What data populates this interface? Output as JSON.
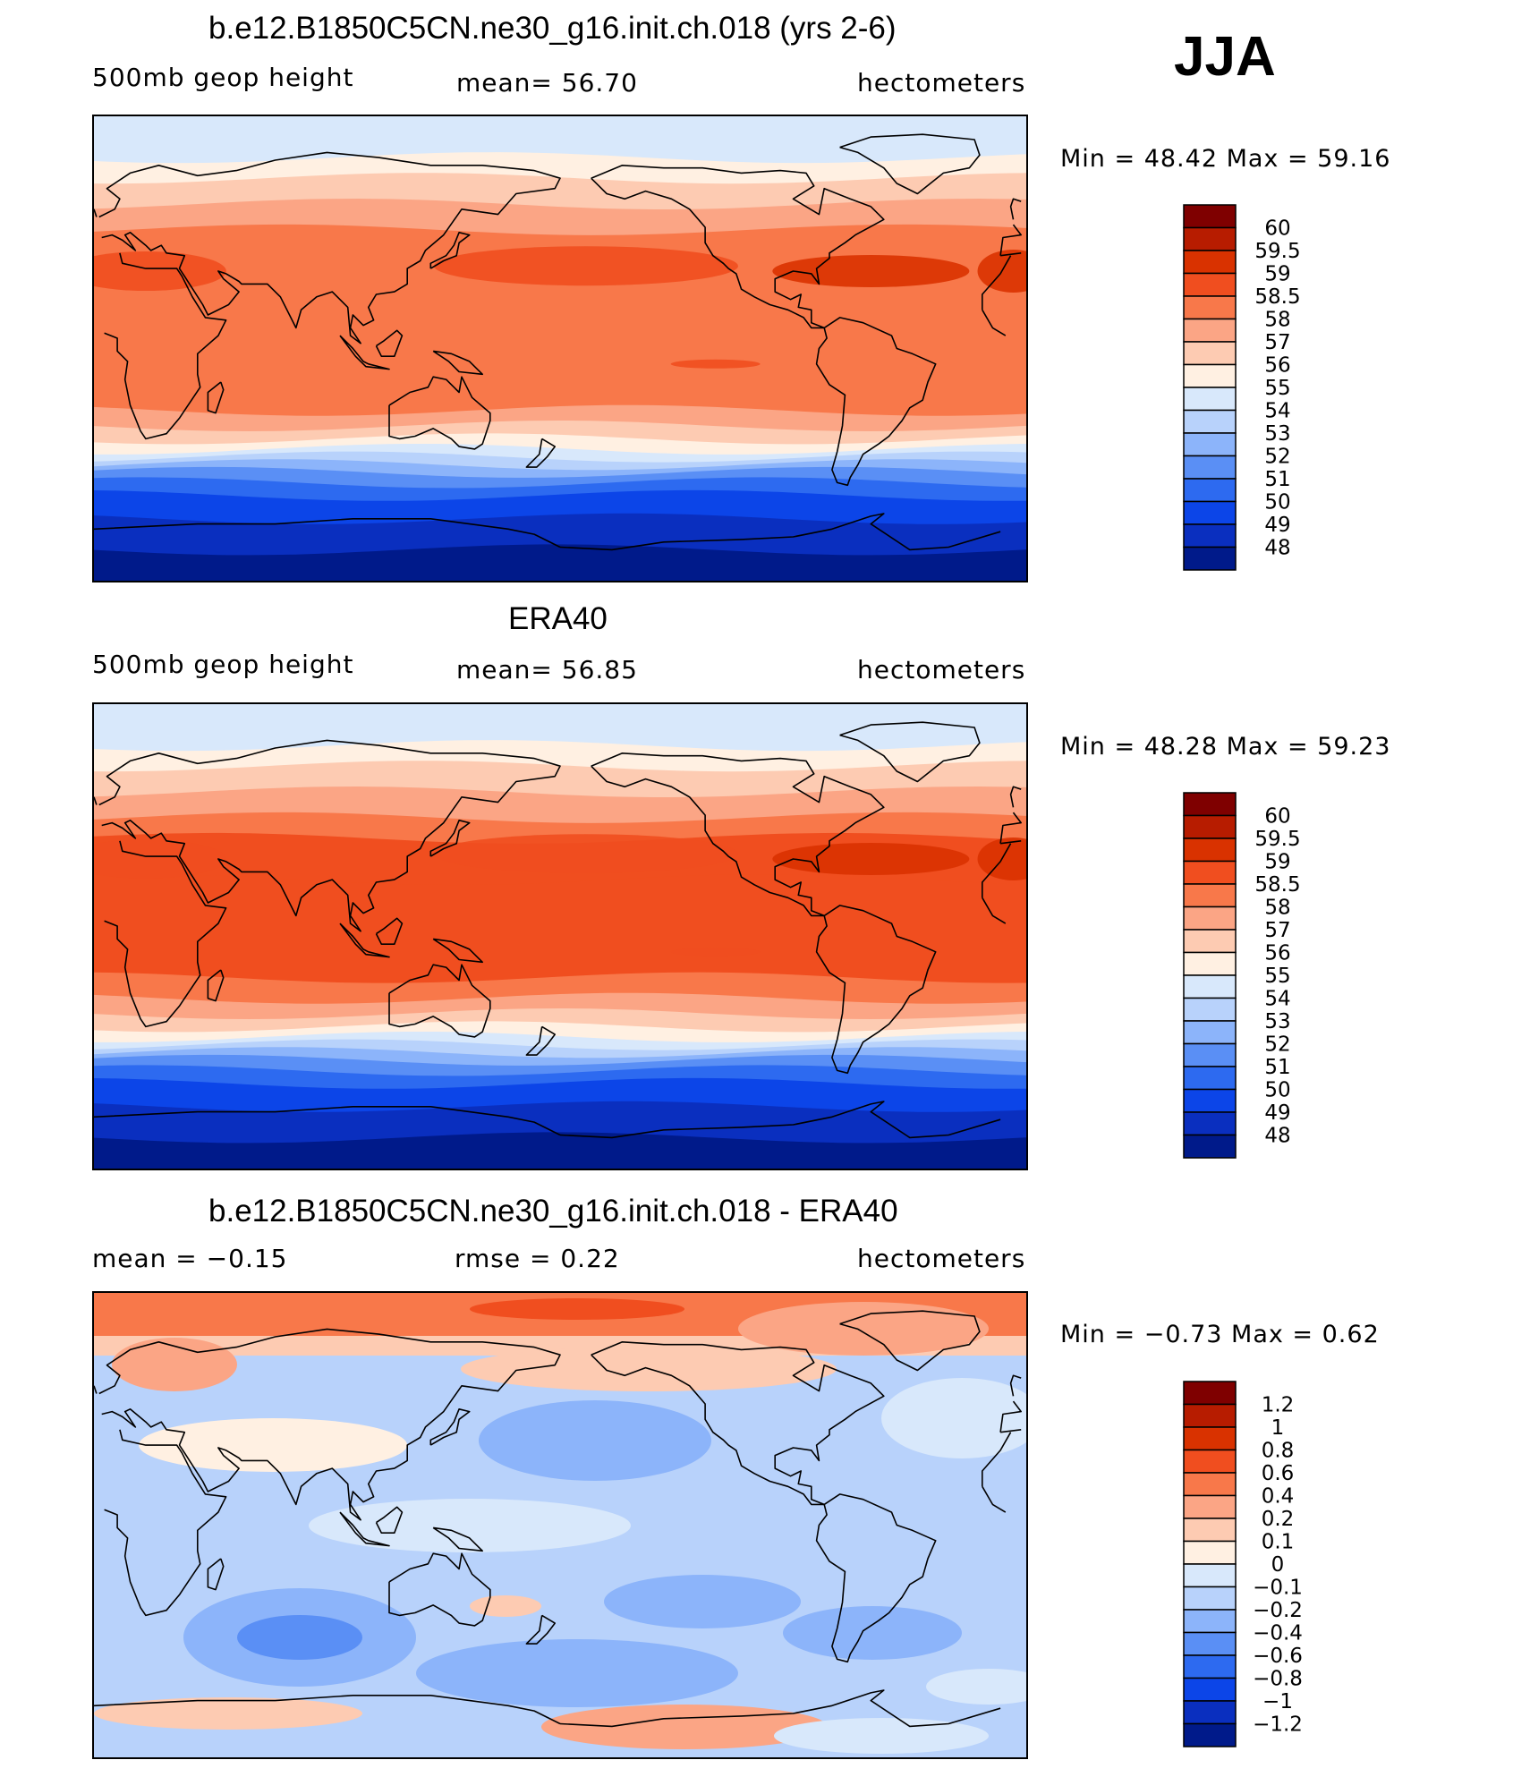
{
  "season_label": "JJA",
  "panels": [
    {
      "title": "b.e12.B1850C5CN.ne30_g16.init.ch.018 (yrs 2-6)",
      "left_label": "500mb  geop  height",
      "center_label": "mean=   56.70",
      "right_label": "hectometers",
      "minmax": "Min  =    48.42  Max  =    59.16",
      "kind": "field"
    },
    {
      "title": "ERA40",
      "left_label": "500mb  geop  height",
      "center_label": "mean=   56.85",
      "right_label": "hectometers",
      "minmax": "Min  =    48.28  Max  =    59.23",
      "kind": "field"
    },
    {
      "title": "b.e12.B1850C5CN.ne30_g16.init.ch.018 - ERA40",
      "left_label": "mean  =    −0.15",
      "center_label": "rmse  =     0.22",
      "right_label": "hectometers",
      "minmax": "Min  =   −0.73  Max  =     0.62",
      "kind": "diff"
    }
  ],
  "colorbar_field": {
    "labels": [
      "60",
      "59.5",
      "59",
      "58.5",
      "58",
      "57",
      "56",
      "55",
      "54",
      "53",
      "52",
      "51",
      "50",
      "49",
      "48"
    ],
    "colors": [
      "#7f0000",
      "#b71c00",
      "#d93200",
      "#f04e1f",
      "#f8784a",
      "#fba585",
      "#fdcbb2",
      "#fff0e2",
      "#d8e8fb",
      "#b8d2fb",
      "#8cb4fa",
      "#5a8ff5",
      "#2d6af0",
      "#0c45e8",
      "#0a2fbf",
      "#001a8a"
    ]
  },
  "colorbar_diff": {
    "labels": [
      "1.2",
      "1",
      "0.8",
      "0.6",
      "0.4",
      "0.2",
      "0.1",
      "0",
      "−0.1",
      "−0.2",
      "−0.4",
      "−0.6",
      "−0.8",
      "−1",
      "−1.2"
    ],
    "colors": [
      "#7f0000",
      "#b71c00",
      "#d93200",
      "#f04e1f",
      "#f8784a",
      "#fba585",
      "#fdcbb2",
      "#fff0e2",
      "#d8e8fb",
      "#b8d2fb",
      "#8cb4fa",
      "#5a8ff5",
      "#2d6af0",
      "#0c45e8",
      "#0a2fbf",
      "#001a8a"
    ]
  },
  "chart_data": [
    {
      "type": "heatmap",
      "title": "b.e12.B1850C5CN.ne30_g16.init.ch.018 (yrs 2-6)",
      "variable": "500mb geop height",
      "units": "hectometers",
      "mean": 56.7,
      "min": 48.42,
      "max": 59.16,
      "levels": [
        48,
        49,
        50,
        51,
        52,
        53,
        54,
        55,
        56,
        57,
        58,
        58.5,
        59,
        59.5,
        60
      ]
    },
    {
      "type": "heatmap",
      "title": "ERA40",
      "variable": "500mb geop height",
      "units": "hectometers",
      "mean": 56.85,
      "min": 48.28,
      "max": 59.23,
      "levels": [
        48,
        49,
        50,
        51,
        52,
        53,
        54,
        55,
        56,
        57,
        58,
        58.5,
        59,
        59.5,
        60
      ]
    },
    {
      "type": "heatmap",
      "title": "b.e12.B1850C5CN.ne30_g16.init.ch.018 - ERA40",
      "units": "hectometers",
      "mean": -0.15,
      "rmse": 0.22,
      "min": -0.73,
      "max": 0.62,
      "levels": [
        -1.2,
        -1,
        -0.8,
        -0.6,
        -0.4,
        -0.2,
        -0.1,
        0,
        0.1,
        0.2,
        0.4,
        0.6,
        0.8,
        1,
        1.2
      ]
    }
  ]
}
